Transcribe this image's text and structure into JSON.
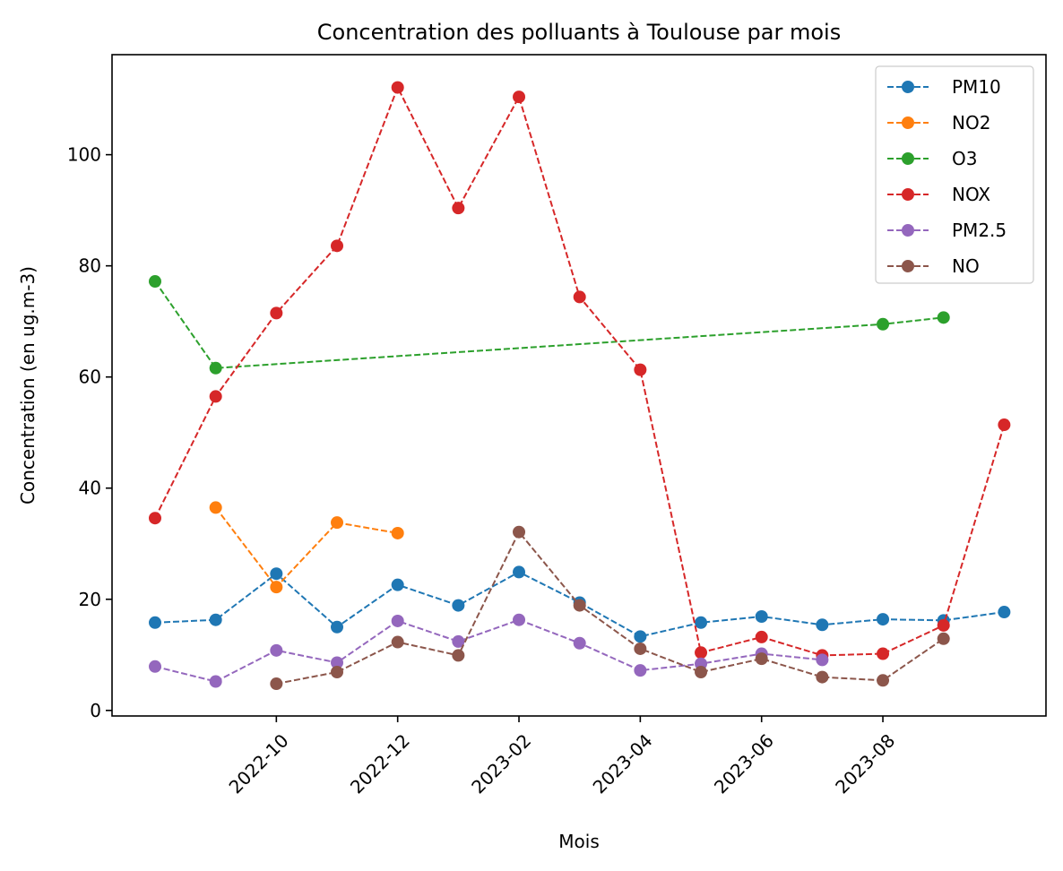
{
  "chart_data": {
    "type": "line",
    "title": "Concentration des polluants à Toulouse par mois",
    "xlabel": "Mois",
    "ylabel": "Concentration (en ug.m-3)",
    "x": [
      "2022-08",
      "2022-09",
      "2022-10",
      "2022-11",
      "2022-12",
      "2023-01",
      "2023-02",
      "2023-03",
      "2023-04",
      "2023-05",
      "2023-06",
      "2023-07",
      "2023-08",
      "2023-09",
      "2023-10"
    ],
    "xticks": [
      "2022-10",
      "2022-12",
      "2023-02",
      "2023-04",
      "2023-06",
      "2023-08"
    ],
    "yticks": [
      0,
      20,
      40,
      60,
      80,
      100
    ],
    "ylim": [
      -1,
      118
    ],
    "grid": false,
    "legend_position": "top-right",
    "series": [
      {
        "name": "PM10",
        "color": "#1f77b4",
        "values": [
          15.8,
          16.3,
          24.6,
          15.0,
          22.6,
          18.9,
          24.9,
          19.4,
          13.3,
          15.8,
          16.9,
          15.4,
          16.4,
          16.2,
          17.7
        ]
      },
      {
        "name": "NO2",
        "color": "#ff7f0e",
        "values": [
          null,
          36.5,
          22.2,
          33.8,
          31.9,
          null,
          null,
          null,
          null,
          null,
          null,
          null,
          null,
          null,
          null
        ]
      },
      {
        "name": "O3",
        "color": "#2ca02c",
        "values": [
          77.2,
          61.6,
          null,
          null,
          null,
          null,
          null,
          null,
          null,
          null,
          null,
          null,
          69.5,
          70.7,
          null
        ]
      },
      {
        "name": "NOX",
        "color": "#d62728",
        "values": [
          34.6,
          56.5,
          71.5,
          83.6,
          112.1,
          90.4,
          110.4,
          74.4,
          61.3,
          10.4,
          13.2,
          9.9,
          10.2,
          15.3,
          51.4
        ]
      },
      {
        "name": "PM2.5",
        "color": "#9467bd",
        "values": [
          7.9,
          5.2,
          10.8,
          8.6,
          16.1,
          12.4,
          16.3,
          12.1,
          7.2,
          8.4,
          10.2,
          9.1,
          null,
          null,
          null
        ]
      },
      {
        "name": "NO",
        "color": "#8c564b",
        "values": [
          null,
          null,
          4.8,
          6.9,
          12.3,
          9.9,
          32.1,
          18.9,
          11.1,
          6.9,
          9.3,
          6.0,
          5.4,
          12.9,
          null
        ]
      }
    ]
  }
}
